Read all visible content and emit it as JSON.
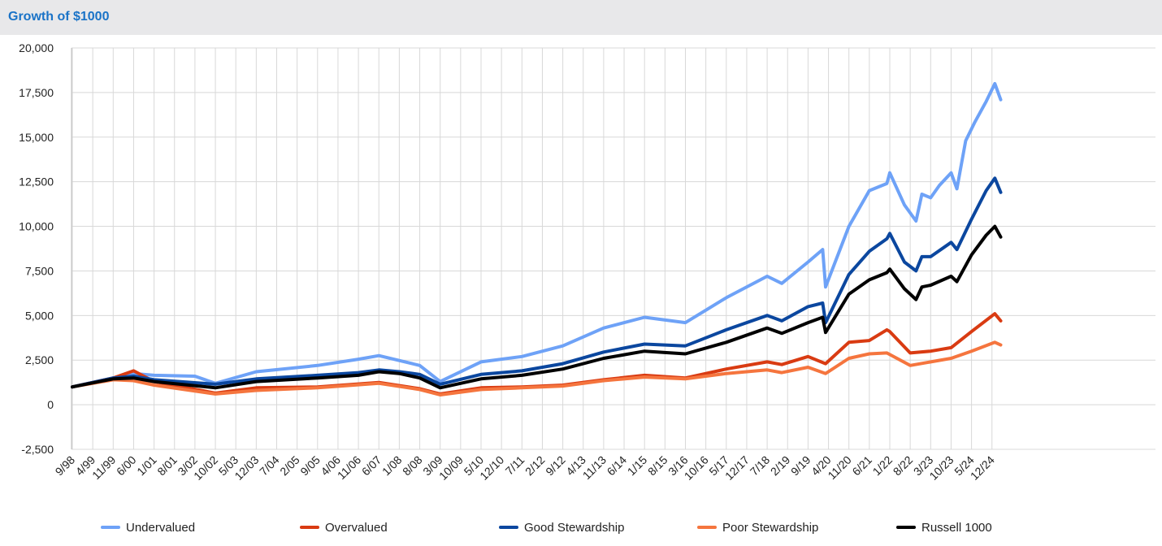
{
  "header": {
    "title": "Growth of $1000"
  },
  "colors": {
    "undervalued": "#6ea2f7",
    "overvalued": "#d93b12",
    "good_stewardship": "#0b479f",
    "poor_stewardship": "#f5753e",
    "russell_1000": "#000000",
    "grid": "#d8d8d8",
    "header_bg": "#e8e8ea",
    "title": "#1a73c7"
  },
  "chart_data": {
    "type": "line",
    "title": "Growth of $1000",
    "xlabel": "",
    "ylabel": "",
    "ylim": [
      -2500,
      20000
    ],
    "yticks": [
      "20,000",
      "17,500",
      "15,000",
      "12,500",
      "10,000",
      "7,500",
      "5,000",
      "2,500",
      "0",
      "-2,500"
    ],
    "ytick_values": [
      20000,
      17500,
      15000,
      12500,
      10000,
      7500,
      5000,
      2500,
      0,
      -2500
    ],
    "xticks": [
      "9/98",
      "4/99",
      "11/99",
      "6/00",
      "1/01",
      "8/01",
      "3/02",
      "10/02",
      "5/03",
      "12/03",
      "7/04",
      "2/05",
      "9/05",
      "4/06",
      "11/06",
      "6/07",
      "1/08",
      "8/08",
      "3/09",
      "10/09",
      "5/10",
      "12/10",
      "7/11",
      "2/12",
      "9/12",
      "4/13",
      "11/13",
      "6/14",
      "1/15",
      "8/15",
      "3/16",
      "10/16",
      "5/17",
      "12/17",
      "7/18",
      "2/19",
      "9/19",
      "4/20",
      "11/20",
      "6/21",
      "1/22",
      "8/22",
      "3/23",
      "10/23",
      "5/24",
      "12/24"
    ],
    "grid": true,
    "legend_position": "bottom",
    "series": [
      {
        "name": "Undervalued",
        "color_key": "undervalued",
        "x": [
          "9/98",
          "11/99",
          "6/00",
          "1/01",
          "3/02",
          "10/02",
          "12/03",
          "9/05",
          "11/06",
          "6/07",
          "8/08",
          "3/09",
          "5/10",
          "7/11",
          "9/12",
          "11/13",
          "1/15",
          "3/16",
          "5/17",
          "7/18",
          "12/18",
          "9/19",
          "2/20",
          "3/20",
          "11/20",
          "6/21",
          "12/21",
          "1/22",
          "6/22",
          "10/22",
          "12/22",
          "3/23",
          "6/23",
          "10/23",
          "12/23",
          "3/24",
          "6/24",
          "10/24",
          "1/25",
          "3/25"
        ],
        "values": [
          1000,
          1500,
          1750,
          1650,
          1600,
          1200,
          1850,
          2200,
          2550,
          2750,
          2200,
          1300,
          2400,
          2700,
          3300,
          4300,
          4900,
          4600,
          6000,
          7200,
          6800,
          8000,
          8700,
          6600,
          10000,
          12000,
          12400,
          13000,
          11200,
          10300,
          11800,
          11600,
          12300,
          13000,
          12100,
          14800,
          15800,
          17000,
          18000,
          17100
        ]
      },
      {
        "name": "Overvalued",
        "color_key": "overvalued",
        "x": [
          "9/98",
          "11/99",
          "6/00",
          "1/01",
          "10/02",
          "12/03",
          "9/05",
          "6/07",
          "8/08",
          "3/09",
          "5/10",
          "7/11",
          "9/12",
          "11/13",
          "1/15",
          "3/16",
          "5/17",
          "7/18",
          "12/18",
          "9/19",
          "3/20",
          "11/20",
          "6/21",
          "12/21",
          "1/22",
          "8/22",
          "3/23",
          "10/23",
          "5/24",
          "1/25",
          "3/25"
        ],
        "values": [
          1000,
          1500,
          1900,
          1300,
          650,
          950,
          1000,
          1250,
          900,
          600,
          950,
          1000,
          1100,
          1400,
          1650,
          1500,
          2000,
          2400,
          2250,
          2700,
          2300,
          3500,
          3600,
          4200,
          4100,
          2900,
          3000,
          3200,
          4100,
          5100,
          4700
        ]
      },
      {
        "name": "Good Stewardship",
        "color_key": "good_stewardship",
        "x": [
          "9/98",
          "11/99",
          "6/00",
          "1/01",
          "10/02",
          "12/03",
          "9/05",
          "11/06",
          "6/07",
          "1/08",
          "8/08",
          "3/09",
          "5/10",
          "7/11",
          "9/12",
          "11/13",
          "1/15",
          "3/16",
          "5/17",
          "7/18",
          "12/18",
          "9/19",
          "2/20",
          "3/20",
          "11/20",
          "6/21",
          "12/21",
          "1/22",
          "6/22",
          "10/22",
          "12/22",
          "3/23",
          "10/23",
          "12/23",
          "5/24",
          "10/24",
          "1/25",
          "3/25"
        ],
        "values": [
          1000,
          1500,
          1600,
          1400,
          1150,
          1450,
          1650,
          1800,
          1950,
          1850,
          1700,
          1150,
          1700,
          1900,
          2300,
          2950,
          3400,
          3300,
          4200,
          5000,
          4700,
          5500,
          5700,
          4600,
          7300,
          8600,
          9300,
          9600,
          8000,
          7500,
          8300,
          8300,
          9100,
          8700,
          10400,
          12000,
          12700,
          11900
        ]
      },
      {
        "name": "Poor Stewardship",
        "color_key": "poor_stewardship",
        "x": [
          "9/98",
          "11/99",
          "6/00",
          "1/01",
          "10/02",
          "12/03",
          "9/05",
          "6/07",
          "8/08",
          "3/09",
          "5/10",
          "7/11",
          "9/12",
          "11/13",
          "1/15",
          "3/16",
          "5/17",
          "7/18",
          "12/18",
          "9/19",
          "3/20",
          "11/20",
          "6/21",
          "12/21",
          "8/22",
          "10/23",
          "5/24",
          "1/25",
          "3/25"
        ],
        "values": [
          1000,
          1400,
          1350,
          1100,
          600,
          800,
          950,
          1200,
          850,
          550,
          850,
          950,
          1050,
          1350,
          1550,
          1450,
          1750,
          1950,
          1800,
          2100,
          1750,
          2600,
          2850,
          2900,
          2200,
          2600,
          3000,
          3500,
          3350
        ]
      },
      {
        "name": "Russell 1000",
        "color_key": "russell_1000",
        "x": [
          "9/98",
          "11/99",
          "6/00",
          "1/01",
          "10/02",
          "12/03",
          "9/05",
          "11/06",
          "6/07",
          "1/08",
          "8/08",
          "3/09",
          "5/10",
          "7/11",
          "9/12",
          "11/13",
          "1/15",
          "3/16",
          "5/17",
          "7/18",
          "12/18",
          "9/19",
          "2/20",
          "3/20",
          "11/20",
          "6/21",
          "12/21",
          "1/22",
          "6/22",
          "10/22",
          "12/22",
          "3/23",
          "10/23",
          "12/23",
          "5/24",
          "10/24",
          "1/25",
          "3/25"
        ],
        "values": [
          1000,
          1450,
          1500,
          1300,
          950,
          1300,
          1500,
          1650,
          1850,
          1750,
          1500,
          950,
          1450,
          1650,
          2000,
          2600,
          3000,
          2850,
          3500,
          4300,
          4000,
          4600,
          4900,
          4050,
          6200,
          7000,
          7400,
          7600,
          6500,
          5900,
          6600,
          6700,
          7200,
          6900,
          8400,
          9500,
          10000,
          9400
        ]
      }
    ]
  }
}
